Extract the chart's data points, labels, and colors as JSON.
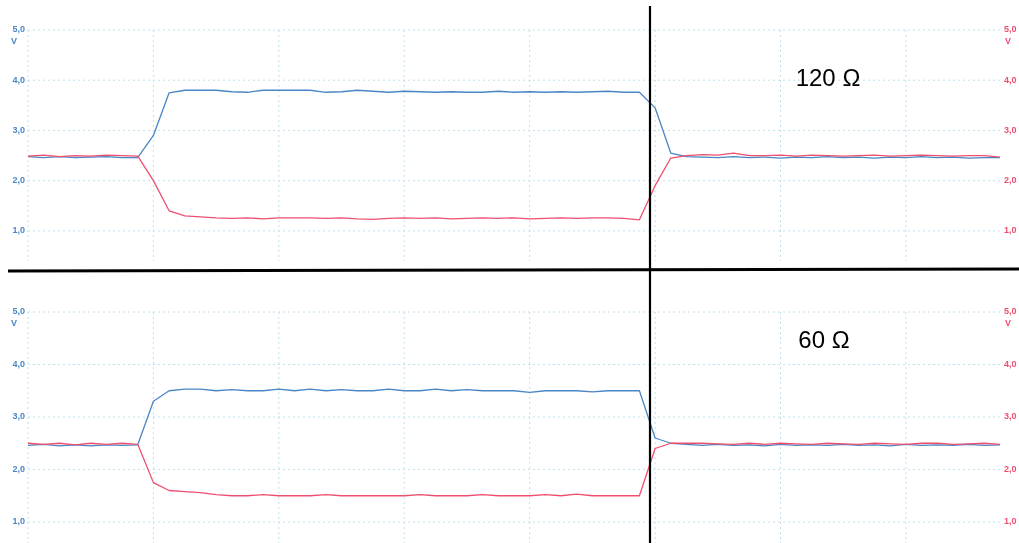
{
  "chart_data": [
    {
      "type": "line",
      "annotations": [
        "120 Ω"
      ],
      "ylabel": "V",
      "y2label": "V",
      "categories": [
        null,
        null,
        null,
        null,
        null,
        null,
        null,
        null,
        null,
        null,
        null,
        null,
        null,
        null,
        null,
        null,
        null,
        null,
        null,
        null,
        null,
        null,
        null,
        null,
        null,
        null,
        null,
        null,
        null,
        null,
        null,
        null,
        null,
        null,
        null,
        null,
        null,
        null,
        null,
        null,
        null,
        null,
        null,
        null,
        null,
        null,
        null,
        null,
        null,
        null,
        null,
        null,
        null,
        null,
        null,
        null,
        null,
        null,
        null,
        null,
        null,
        null,
        null
      ],
      "ylim": [
        0.4,
        5.0
      ],
      "yticks": [
        {
          "value": 1,
          "label": "1,0"
        },
        {
          "value": 2,
          "label": "2,0"
        },
        {
          "value": 3,
          "label": "3,0"
        },
        {
          "value": 4,
          "label": "4,0"
        },
        {
          "value": 5,
          "label": "5,0"
        }
      ],
      "y2lim": [
        0.4,
        5.0
      ],
      "y2ticks": [
        {
          "value": 1,
          "label": "1,0"
        },
        {
          "value": 2,
          "label": "2,0"
        },
        {
          "value": 3,
          "label": "3,0"
        },
        {
          "value": 4,
          "label": "4,0"
        },
        {
          "value": 5,
          "label": "5,0"
        }
      ],
      "grid": true,
      "series": [
        {
          "color": "#4a86c5",
          "axis": "y",
          "values": [
            2.48,
            2.46,
            2.48,
            2.46,
            2.47,
            2.48,
            2.46,
            2.46,
            2.9,
            3.75,
            3.8,
            3.8,
            3.8,
            3.77,
            3.76,
            3.8,
            3.8,
            3.8,
            3.8,
            3.76,
            3.77,
            3.8,
            3.78,
            3.76,
            3.78,
            3.77,
            3.76,
            3.77,
            3.76,
            3.76,
            3.78,
            3.76,
            3.77,
            3.76,
            3.77,
            3.76,
            3.77,
            3.78,
            3.76,
            3.76,
            3.45,
            2.55,
            2.48,
            2.47,
            2.46,
            2.48,
            2.46,
            2.47,
            2.45,
            2.47,
            2.46,
            2.48,
            2.46,
            2.47,
            2.45,
            2.47,
            2.46,
            2.48,
            2.46,
            2.47,
            2.45,
            2.46,
            2.46
          ]
        },
        {
          "color": "#ef4f6f",
          "axis": "y2",
          "values": [
            2.49,
            2.51,
            2.48,
            2.5,
            2.49,
            2.51,
            2.5,
            2.49,
            2.0,
            1.4,
            1.3,
            1.28,
            1.26,
            1.25,
            1.26,
            1.24,
            1.26,
            1.26,
            1.26,
            1.25,
            1.26,
            1.24,
            1.23,
            1.25,
            1.26,
            1.25,
            1.26,
            1.24,
            1.25,
            1.26,
            1.25,
            1.26,
            1.24,
            1.25,
            1.26,
            1.25,
            1.26,
            1.26,
            1.25,
            1.22,
            1.9,
            2.45,
            2.5,
            2.52,
            2.51,
            2.55,
            2.5,
            2.5,
            2.51,
            2.49,
            2.51,
            2.5,
            2.49,
            2.5,
            2.51,
            2.49,
            2.5,
            2.51,
            2.5,
            2.49,
            2.5,
            2.5,
            2.47
          ]
        }
      ]
    },
    {
      "type": "line",
      "annotations": [
        "60 Ω"
      ],
      "ylabel": "V",
      "y2label": "V",
      "categories": [
        null,
        null,
        null,
        null,
        null,
        null,
        null,
        null,
        null,
        null,
        null,
        null,
        null,
        null,
        null,
        null,
        null,
        null,
        null,
        null,
        null,
        null,
        null,
        null,
        null,
        null,
        null,
        null,
        null,
        null,
        null,
        null,
        null,
        null,
        null,
        null,
        null,
        null,
        null,
        null,
        null,
        null,
        null,
        null,
        null,
        null,
        null,
        null,
        null,
        null,
        null,
        null,
        null,
        null,
        null,
        null,
        null,
        null,
        null,
        null,
        null,
        null,
        null
      ],
      "ylim": [
        0.6,
        5.0
      ],
      "yticks": [
        {
          "value": 1,
          "label": "1,0"
        },
        {
          "value": 2,
          "label": "2,0"
        },
        {
          "value": 3,
          "label": "3,0"
        },
        {
          "value": 4,
          "label": "4,0"
        },
        {
          "value": 5,
          "label": "5,0"
        }
      ],
      "y2lim": [
        0.6,
        5.0
      ],
      "y2ticks": [
        {
          "value": 1,
          "label": "1,0"
        },
        {
          "value": 2,
          "label": "2,0"
        },
        {
          "value": 3,
          "label": "3,0"
        },
        {
          "value": 4,
          "label": "4,0"
        },
        {
          "value": 5,
          "label": "5,0"
        }
      ],
      "grid": true,
      "series": [
        {
          "color": "#4a86c5",
          "axis": "y",
          "values": [
            2.46,
            2.48,
            2.45,
            2.47,
            2.45,
            2.47,
            2.46,
            2.47,
            3.3,
            3.5,
            3.53,
            3.53,
            3.5,
            3.52,
            3.5,
            3.5,
            3.53,
            3.5,
            3.53,
            3.5,
            3.52,
            3.5,
            3.5,
            3.53,
            3.5,
            3.5,
            3.53,
            3.5,
            3.52,
            3.5,
            3.5,
            3.5,
            3.47,
            3.5,
            3.5,
            3.5,
            3.48,
            3.5,
            3.5,
            3.5,
            2.6,
            2.5,
            2.48,
            2.46,
            2.48,
            2.46,
            2.47,
            2.45,
            2.48,
            2.46,
            2.47,
            2.46,
            2.48,
            2.46,
            2.47,
            2.45,
            2.48,
            2.46,
            2.47,
            2.46,
            2.48,
            2.46,
            2.47
          ]
        },
        {
          "color": "#ef4f6f",
          "axis": "y2",
          "values": [
            2.5,
            2.48,
            2.5,
            2.47,
            2.5,
            2.48,
            2.5,
            2.48,
            1.75,
            1.6,
            1.58,
            1.56,
            1.52,
            1.5,
            1.5,
            1.52,
            1.5,
            1.5,
            1.5,
            1.52,
            1.5,
            1.5,
            1.5,
            1.5,
            1.5,
            1.52,
            1.5,
            1.5,
            1.5,
            1.52,
            1.5,
            1.5,
            1.5,
            1.52,
            1.5,
            1.53,
            1.5,
            1.5,
            1.5,
            1.5,
            2.4,
            2.5,
            2.5,
            2.5,
            2.49,
            2.48,
            2.5,
            2.48,
            2.5,
            2.49,
            2.48,
            2.5,
            2.49,
            2.48,
            2.5,
            2.49,
            2.48,
            2.5,
            2.5,
            2.48,
            2.49,
            2.5,
            2.48
          ]
        }
      ]
    }
  ]
}
